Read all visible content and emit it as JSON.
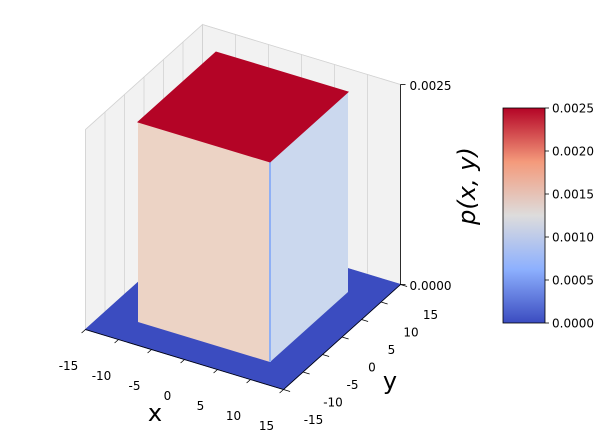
{
  "chart_data": {
    "type": "surface3d",
    "xlabel": "x",
    "ylabel": "y",
    "zlabel": "p(x, y)",
    "cmap": "coolwarm",
    "xlim": [
      -15,
      15
    ],
    "ylim": [
      -15,
      15
    ],
    "zlim": [
      0,
      0.0025
    ],
    "xticks": [
      -15,
      -10,
      -5,
      0,
      5,
      10,
      15
    ],
    "yticks": [
      -15,
      -10,
      -5,
      0,
      5,
      10,
      15
    ],
    "zticks": [
      {
        "value": 0,
        "label": "0.0000"
      },
      {
        "value": 0.0025,
        "label": "0.0025"
      }
    ],
    "base": {
      "x": [
        -15,
        15
      ],
      "y": [
        -15,
        15
      ],
      "value": 0
    },
    "plateau": {
      "x": [
        -10,
        10
      ],
      "y": [
        -10,
        10
      ],
      "value": 0.0025
    },
    "colorbar": {
      "clim": [
        0,
        0.0025
      ],
      "ticks": [
        {
          "value": 0,
          "label": "0.0000"
        },
        {
          "value": 0.0005,
          "label": "0.0005"
        },
        {
          "value": 0.001,
          "label": "0.0010"
        },
        {
          "value": 0.0015,
          "label": "0.0015"
        },
        {
          "value": 0.002,
          "label": "0.0020"
        },
        {
          "value": 0.0025,
          "label": "0.0025"
        }
      ]
    }
  }
}
